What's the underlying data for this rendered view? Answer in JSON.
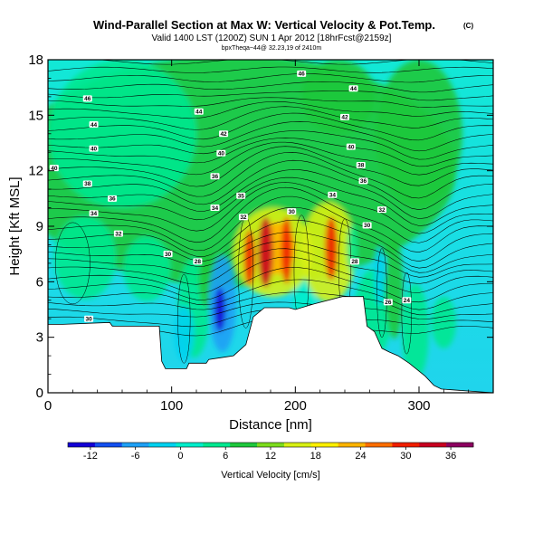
{
  "chart_data": {
    "type": "heatmap",
    "title": "Wind-Parallel Section at Max W: Vertical Velocity & Pot.Temp.",
    "title_mark": "(C)",
    "subtitle": "Valid 1400 LST (1200Z) SUN 1 Apr 2012 [18hrFcst@2159z]",
    "subtitle2": "bpxTheqa~44@ 32.23,19 of 2410m",
    "xlabel": "Distance [nm]",
    "ylabel": "Height [Kft MSL]",
    "xlim": [
      0,
      360
    ],
    "ylim": [
      0,
      18
    ],
    "x_ticks": [
      "0",
      "100",
      "200",
      "300"
    ],
    "y_ticks": [
      "0",
      "3",
      "6",
      "9",
      "12",
      "15",
      "18"
    ],
    "terrain": [
      [
        0,
        3.7
      ],
      [
        12,
        3.7
      ],
      [
        50,
        3.8
      ],
      [
        52,
        3.6
      ],
      [
        90,
        3.6
      ],
      [
        92,
        1.7
      ],
      [
        95,
        1.3
      ],
      [
        112,
        1.3
      ],
      [
        114,
        1.6
      ],
      [
        128,
        1.6
      ],
      [
        130,
        1.8
      ],
      [
        140,
        1.9
      ],
      [
        150,
        2.0
      ],
      [
        160,
        2.6
      ],
      [
        166,
        4.1
      ],
      [
        175,
        4.6
      ],
      [
        195,
        4.6
      ],
      [
        200,
        4.5
      ],
      [
        215,
        4.8
      ],
      [
        238,
        5.2
      ],
      [
        255,
        5.2
      ],
      [
        258,
        3.6
      ],
      [
        264,
        3.3
      ],
      [
        270,
        2.4
      ],
      [
        276,
        2.2
      ],
      [
        283,
        2.0
      ],
      [
        292,
        1.6
      ],
      [
        305,
        0.9
      ],
      [
        312,
        0.4
      ],
      [
        318,
        0.2
      ],
      [
        360,
        0
      ]
    ],
    "colorbar": {
      "label": "Vertical Velocity [cm/s]",
      "ticks": [
        "-12",
        "-6",
        "0",
        "6",
        "12",
        "18",
        "24",
        "30",
        "36"
      ],
      "range": [
        -15,
        39
      ],
      "colors": [
        "#1400d6",
        "#1450f0",
        "#1ea0f5",
        "#00d2f0",
        "#00eecb",
        "#00e890",
        "#1ec83c",
        "#7cdc1c",
        "#d8f014",
        "#fff000",
        "#ffb400",
        "#ff6e00",
        "#f01e00",
        "#c80020",
        "#8c0060"
      ]
    },
    "contour_labels": [
      {
        "x": 205,
        "y": 17.25,
        "text": "46"
      },
      {
        "x": 32,
        "y": 15.9,
        "text": "46"
      },
      {
        "x": 247,
        "y": 16.45,
        "text": "44"
      },
      {
        "x": 122,
        "y": 15.2,
        "text": "44"
      },
      {
        "x": 37,
        "y": 14.5,
        "text": "44"
      },
      {
        "x": 240,
        "y": 14.9,
        "text": "42"
      },
      {
        "x": 142,
        "y": 14.0,
        "text": "42"
      },
      {
        "x": 37,
        "y": 13.2,
        "text": "40"
      },
      {
        "x": 140,
        "y": 12.95,
        "text": "40"
      },
      {
        "x": 245,
        "y": 13.3,
        "text": "40"
      },
      {
        "x": 5,
        "y": 12.15,
        "text": "40"
      },
      {
        "x": 253,
        "y": 12.3,
        "text": "38"
      },
      {
        "x": 32,
        "y": 11.3,
        "text": "38"
      },
      {
        "x": 135,
        "y": 11.7,
        "text": "36"
      },
      {
        "x": 255,
        "y": 11.45,
        "text": "36"
      },
      {
        "x": 52,
        "y": 10.5,
        "text": "36"
      },
      {
        "x": 156,
        "y": 10.65,
        "text": "35"
      },
      {
        "x": 230,
        "y": 10.7,
        "text": "34"
      },
      {
        "x": 135,
        "y": 10.0,
        "text": "34"
      },
      {
        "x": 270,
        "y": 9.9,
        "text": "32"
      },
      {
        "x": 37,
        "y": 9.7,
        "text": "34"
      },
      {
        "x": 158,
        "y": 9.5,
        "text": "32"
      },
      {
        "x": 197,
        "y": 9.8,
        "text": "30"
      },
      {
        "x": 258,
        "y": 9.05,
        "text": "30"
      },
      {
        "x": 57,
        "y": 8.6,
        "text": "32"
      },
      {
        "x": 97,
        "y": 7.5,
        "text": "30"
      },
      {
        "x": 121,
        "y": 7.1,
        "text": "28"
      },
      {
        "x": 248,
        "y": 7.1,
        "text": "28"
      },
      {
        "x": 275,
        "y": 4.9,
        "text": "26"
      },
      {
        "x": 290,
        "y": 5.0,
        "text": "24"
      },
      {
        "x": 33,
        "y": 4.0,
        "text": "30"
      }
    ]
  }
}
